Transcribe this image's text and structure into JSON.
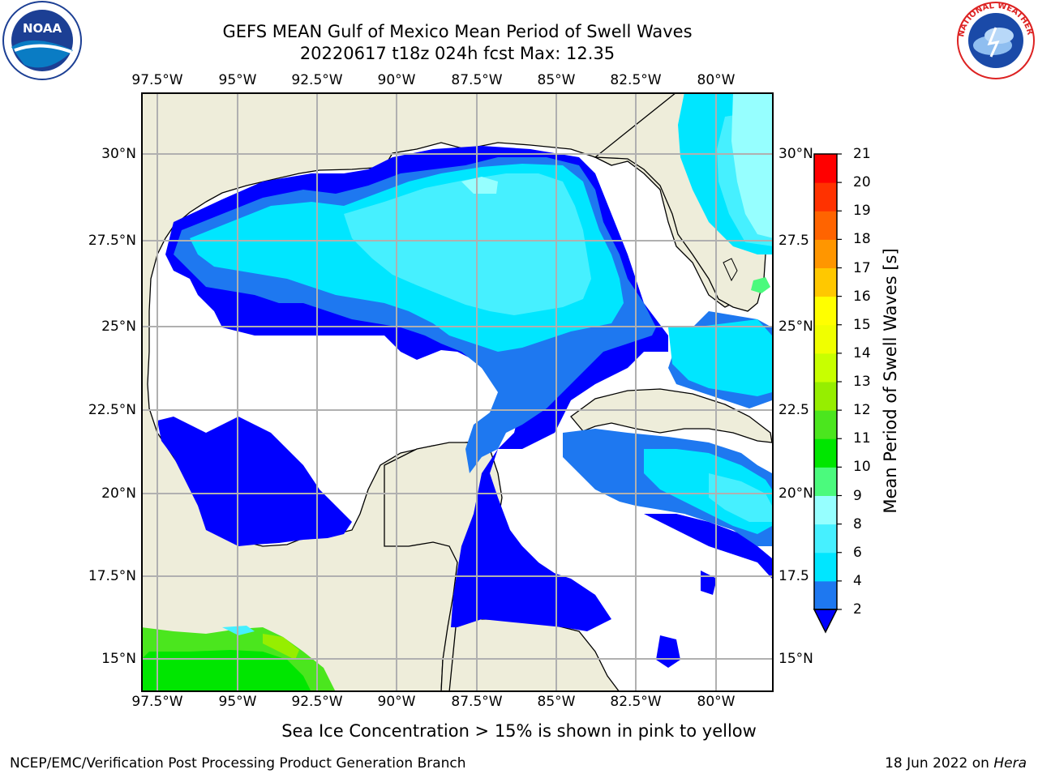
{
  "title_line1": "GEFS MEAN Gulf of Mexico Mean Period of Swell Waves",
  "title_line2": "20220617 t18z 024h fcst   Max: 12.35",
  "logos": {
    "left": {
      "name": "noaa-logo",
      "text": "NOAA"
    },
    "right": {
      "name": "nws-logo",
      "text": "NATIONAL WEATHER SERVICE"
    }
  },
  "map": {
    "lon_ticks": [
      "97.5°W",
      "95°W",
      "92.5°W",
      "90°W",
      "87.5°W",
      "85°W",
      "82.5°W",
      "80°W"
    ],
    "lat_ticks_left": [
      "30°N",
      "27.5°N",
      "25°N",
      "22.5°N",
      "20°N",
      "17.5°N",
      "15°N"
    ],
    "lat_ticks_right": [
      "30°N",
      "27.5",
      "25°N",
      "22.5",
      "20°N",
      "17.5",
      "15°N"
    ],
    "colors": {
      "land": "#eeedda",
      "ocean_none": "#ffffff",
      "grid": "#b0b0b0"
    }
  },
  "colorbar": {
    "label": "Mean Period of Swell Waves [s]",
    "levels": [
      "2",
      "4",
      "6",
      "8",
      "9",
      "10",
      "11",
      "12",
      "13",
      "14",
      "15",
      "16",
      "17",
      "18",
      "19",
      "20",
      "21"
    ],
    "colors": [
      "#0000ff",
      "#1e78f0",
      "#00e6ff",
      "#46f0ff",
      "#96ffff",
      "#4bfa7d",
      "#00e600",
      "#4be61e",
      "#96ee00",
      "#c8ff00",
      "#f0ff00",
      "#ffff00",
      "#ffc800",
      "#ff9600",
      "#ff6400",
      "#ff3200",
      "#ff0000"
    ],
    "under_color": "#0000ff"
  },
  "caption": "Sea Ice Concentration > 15% is shown in pink to yellow",
  "footer_left": "NCEP/EMC/Verification Post Processing Product Generation Branch",
  "footer_right_prefix": "18 Jun 2022 on ",
  "footer_right_system": "Hera"
}
